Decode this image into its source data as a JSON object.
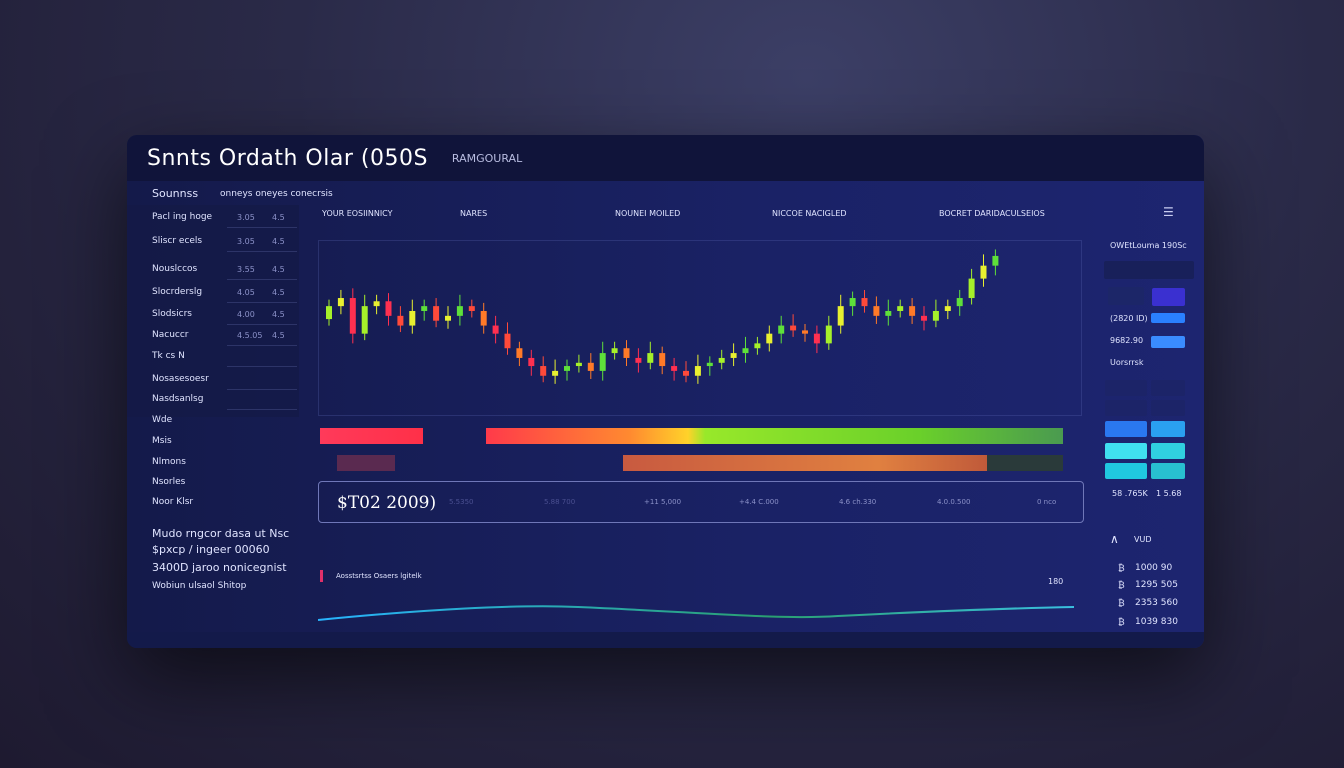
{
  "window": {
    "title": "Snnts Ordath Olar (050S",
    "subtitle": "RAMGOURAL"
  },
  "sidebar": {
    "header": "Sounnss",
    "header_right": "onneys oneyes conecrsis",
    "items": [
      {
        "label": "Pacl ing hoge",
        "v1": "3.05",
        "v2": "4.5"
      },
      {
        "label": "Sliscr ecels",
        "v1": "3.05",
        "v2": "4.5"
      },
      {
        "label": "Nouslccos",
        "v1": "3.55",
        "v2": "4.5"
      },
      {
        "label": "Slocrderslg",
        "v1": "4.05",
        "v2": "4.5"
      },
      {
        "label": "Slodsicrs",
        "v1": "4.00",
        "v2": "4.5"
      },
      {
        "label": "Nacuccr",
        "v1": "4.5.05",
        "v2": "4.5"
      },
      {
        "label": "Tk cs N",
        "v1": "",
        "v2": ""
      },
      {
        "label": "Nosasesoesr",
        "v1": "",
        "v2": ""
      },
      {
        "label": "Nasdsanlsg",
        "v1": "",
        "v2": ""
      }
    ],
    "links": [
      "Wde",
      "Msis",
      "Nlmons",
      "Nsorles",
      "Noor Klsr"
    ],
    "summary": [
      "Mudo rngcor dasa ut Nsc",
      "$pxcp / ingeer 00060",
      "3400D  jaroo nonicegnist",
      "Wobiun ulsaol   Shitop"
    ]
  },
  "chart": {
    "headers": [
      "YOUR EOSIINNICY",
      "NARES",
      "NOUNEI MOILED",
      "NICCOE NACIGLED",
      "BOCRET DARIDACULSEIOS"
    ],
    "menu_icon": "filter-icon"
  },
  "chart_data": {
    "type": "candlestick",
    "closes": [
      66,
      71,
      49,
      66,
      69,
      60,
      54,
      63,
      66,
      57,
      60,
      66,
      63,
      54,
      49,
      40,
      34,
      29,
      23,
      26,
      29,
      31,
      26,
      37,
      40,
      34,
      31,
      37,
      29,
      26,
      23,
      29,
      31,
      34,
      37,
      40,
      43,
      49,
      54,
      51,
      49,
      43,
      54,
      66,
      71,
      66,
      60,
      63,
      66,
      60,
      57,
      63,
      66,
      71,
      83,
      91,
      97
    ],
    "up_colors": [
      "#a6f02a",
      "#e8f030",
      "#5ee03a"
    ],
    "down_colors": [
      "#ff4a3a",
      "#ff7a28",
      "#ff3050"
    ]
  },
  "price_row": {
    "main": "$T02 2009)",
    "cells": [
      "5.5350",
      "5.88 700",
      "+11 5,000",
      "+4.4 C.000",
      "4.6 ch.330",
      "4.0.0.500",
      "0 nco"
    ]
  },
  "volume": {
    "label": "Aosstsrtss Osaers lgitelk",
    "value": "180"
  },
  "right_panel": {
    "title": "OWEtLouma 190Sc",
    "rows": [
      "(2820 ID)",
      "9682.90",
      "Uorsrrsk"
    ],
    "footer": [
      "58 .765K",
      "1 5.68"
    ],
    "section_label": "VUD",
    "values": [
      "1000 90",
      "1295 505",
      "2353 560",
      "1039 830"
    ]
  }
}
